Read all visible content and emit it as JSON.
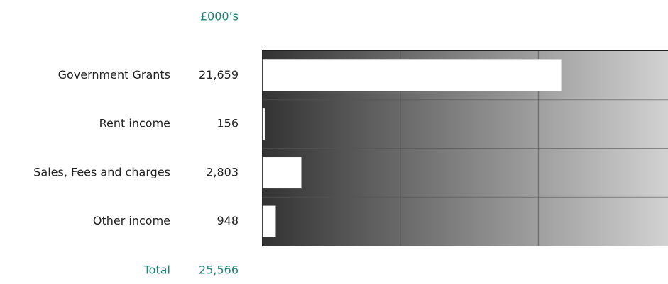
{
  "chart_data": {
    "type": "hbar",
    "unit_label": "£000’s",
    "categories": [
      "Government Grants",
      "Rent income",
      "Sales, Fees and charges",
      "Other income"
    ],
    "values": [
      21659,
      156,
      2803,
      948
    ],
    "value_labels": [
      "21,659",
      "156",
      "2,803",
      "948"
    ],
    "color": "#ffffff",
    "xlim": [
      0,
      29400
    ],
    "xticks": [
      10000,
      20000
    ],
    "grid": true,
    "total": {
      "label": "Total",
      "value_label": "25,566"
    }
  }
}
